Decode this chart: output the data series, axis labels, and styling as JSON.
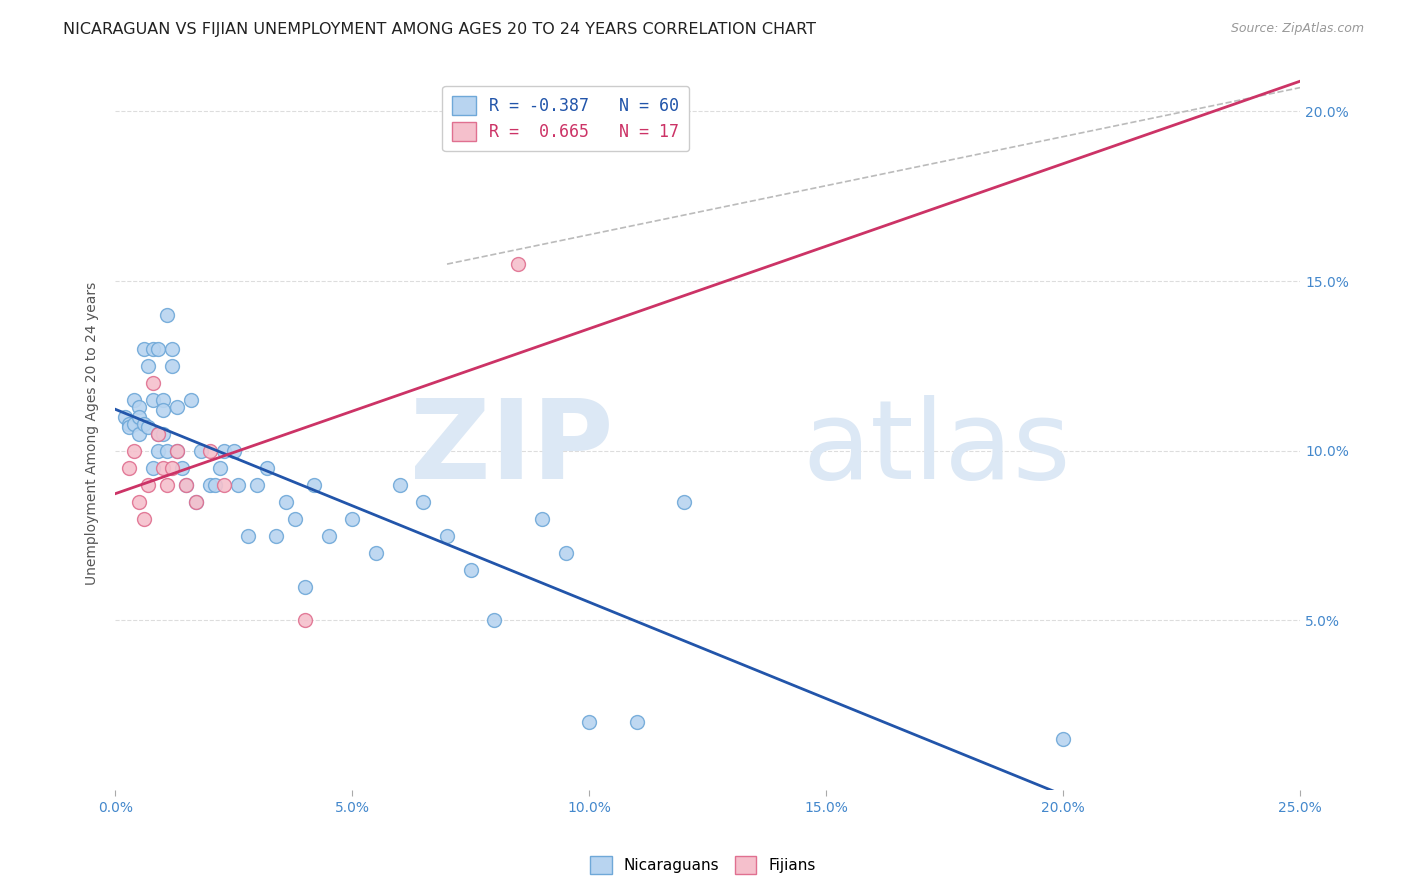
{
  "title": "NICARAGUAN VS FIJIAN UNEMPLOYMENT AMONG AGES 20 TO 24 YEARS CORRELATION CHART",
  "source": "Source: ZipAtlas.com",
  "ylabel": "Unemployment Among Ages 20 to 24 years",
  "xlim": [
    0.0,
    0.25
  ],
  "ylim": [
    0.0,
    0.21
  ],
  "xticks": [
    0.0,
    0.05,
    0.1,
    0.15,
    0.2,
    0.25
  ],
  "yticks": [
    0.05,
    0.1,
    0.15,
    0.2
  ],
  "xticklabels": [
    "0.0%",
    "5.0%",
    "10.0%",
    "15.0%",
    "20.0%",
    "25.0%"
  ],
  "yticklabels_right": [
    "5.0%",
    "10.0%",
    "15.0%",
    "20.0%"
  ],
  "dot_color_nicaraguan": "#b8d4f0",
  "dot_color_fijian": "#f5c0cc",
  "dot_edge_nicaraguan": "#6fa8d8",
  "dot_edge_fijian": "#e07090",
  "line_color_nicaraguan": "#2255aa",
  "line_color_fijian": "#cc3366",
  "trend_dash_color": "#bbbbbb",
  "background_color": "#ffffff",
  "grid_color": "#dddddd",
  "watermark_color": "#dce8f5",
  "nicaraguan_x": [
    0.002,
    0.003,
    0.003,
    0.004,
    0.004,
    0.005,
    0.005,
    0.005,
    0.006,
    0.006,
    0.007,
    0.007,
    0.008,
    0.008,
    0.008,
    0.009,
    0.009,
    0.009,
    0.01,
    0.01,
    0.01,
    0.011,
    0.011,
    0.012,
    0.012,
    0.013,
    0.013,
    0.014,
    0.015,
    0.016,
    0.017,
    0.018,
    0.02,
    0.021,
    0.022,
    0.023,
    0.025,
    0.026,
    0.028,
    0.03,
    0.032,
    0.034,
    0.036,
    0.038,
    0.04,
    0.042,
    0.045,
    0.05,
    0.055,
    0.06,
    0.065,
    0.07,
    0.075,
    0.08,
    0.09,
    0.095,
    0.1,
    0.11,
    0.12,
    0.2
  ],
  "nicaraguan_y": [
    0.11,
    0.108,
    0.107,
    0.115,
    0.108,
    0.113,
    0.105,
    0.11,
    0.13,
    0.108,
    0.125,
    0.107,
    0.13,
    0.115,
    0.095,
    0.13,
    0.105,
    0.1,
    0.115,
    0.112,
    0.105,
    0.14,
    0.1,
    0.13,
    0.125,
    0.1,
    0.113,
    0.095,
    0.09,
    0.115,
    0.085,
    0.1,
    0.09,
    0.09,
    0.095,
    0.1,
    0.1,
    0.09,
    0.075,
    0.09,
    0.095,
    0.075,
    0.085,
    0.08,
    0.06,
    0.09,
    0.075,
    0.08,
    0.07,
    0.09,
    0.085,
    0.075,
    0.065,
    0.05,
    0.08,
    0.07,
    0.02,
    0.02,
    0.085,
    0.015
  ],
  "fijian_x": [
    0.003,
    0.004,
    0.005,
    0.006,
    0.007,
    0.008,
    0.009,
    0.01,
    0.011,
    0.012,
    0.013,
    0.015,
    0.017,
    0.02,
    0.023,
    0.04,
    0.085
  ],
  "fijian_y": [
    0.095,
    0.1,
    0.085,
    0.08,
    0.09,
    0.12,
    0.105,
    0.095,
    0.09,
    0.095,
    0.1,
    0.09,
    0.085,
    0.1,
    0.09,
    0.05,
    0.155
  ],
  "dot_size": 100,
  "dot_alpha": 0.9,
  "title_fontsize": 11.5,
  "axis_label_fontsize": 10,
  "tick_fontsize": 10,
  "legend_fontsize": 12
}
